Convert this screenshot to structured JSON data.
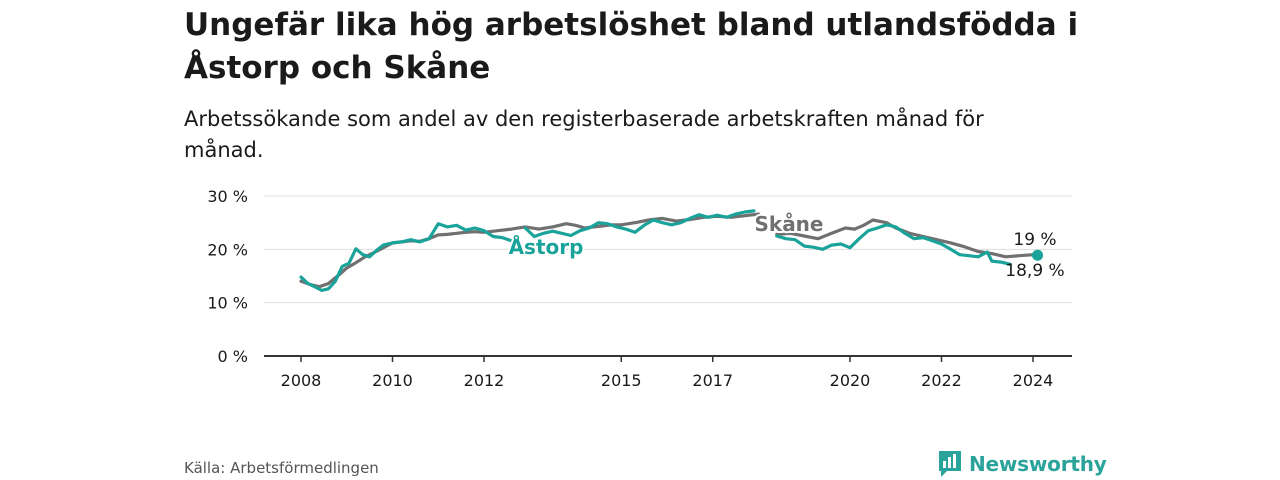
{
  "title": "Ungefär lika hög arbetslöshet bland utlandsfödda i Åstorp och Skåne",
  "subtitle": "Arbetssökande som andel av den registerbaserade arbetskraften månad för månad.",
  "source": "Källa: Arbetsförmedlingen",
  "brand": "Newsworthy",
  "colors": {
    "astorp": "#1aa39a",
    "skane": "#707070",
    "axis": "#333333",
    "grid": "#dddddd",
    "text": "#1a1a1a"
  },
  "chart_data": {
    "type": "line",
    "title": "Ungefär lika hög arbetslöshet bland utlandsfödda i Åstorp och Skåne",
    "xlabel": "",
    "ylabel": "",
    "xlim": [
      2007.7,
      2024.8
    ],
    "ylim": [
      0,
      30
    ],
    "y_ticks": [
      0,
      10,
      20,
      30
    ],
    "y_tick_labels": [
      "0 %",
      "10 %",
      "20 %",
      "30 %"
    ],
    "x_ticks": [
      2008,
      2010,
      2012,
      2015,
      2017,
      2020,
      2022,
      2024
    ],
    "x_tick_labels": [
      "2008",
      "2010",
      "2012",
      "2015",
      "2017",
      "2020",
      "2022",
      "2024"
    ],
    "grid": true,
    "series": [
      {
        "name": "Skåne",
        "label": "Skåne",
        "end_label": "19 %",
        "x": [
          2008.0,
          2008.2,
          2008.4,
          2008.6,
          2008.8,
          2009.0,
          2009.2,
          2009.4,
          2009.6,
          2009.8,
          2010.0,
          2010.2,
          2010.4,
          2010.6,
          2010.8,
          2011.0,
          2011.2,
          2011.4,
          2011.6,
          2011.8,
          2012.0,
          2012.3,
          2012.6,
          2012.9,
          2013.2,
          2013.5,
          2013.8,
          2014.0,
          2014.2,
          2014.4,
          2014.6,
          2014.8,
          2015.0,
          2015.3,
          2015.6,
          2015.9,
          2016.2,
          2016.5,
          2016.8,
          2017.1,
          2017.4,
          2017.7,
          2018.0,
          null,
          2018.4,
          2018.7,
          2019.0,
          2019.3,
          2019.6,
          2019.9,
          2020.1,
          2020.3,
          2020.5,
          2020.8,
          2021.0,
          2021.3,
          2021.6,
          2021.9,
          2022.2,
          2022.5,
          2022.8,
          2023.1,
          2023.4,
          2023.7,
          2024.0,
          2024.1
        ],
        "values": [
          14.0,
          13.4,
          13.0,
          13.6,
          15.0,
          16.5,
          17.5,
          18.6,
          19.4,
          20.3,
          21.2,
          21.4,
          21.6,
          21.5,
          22.0,
          22.7,
          22.8,
          23.0,
          23.2,
          23.3,
          23.2,
          23.5,
          23.8,
          24.2,
          23.8,
          24.2,
          24.8,
          24.5,
          24.0,
          24.2,
          24.4,
          24.6,
          24.6,
          25.0,
          25.5,
          25.8,
          25.3,
          25.6,
          26.0,
          26.2,
          26.0,
          26.3,
          26.6,
          null,
          22.8,
          23.0,
          22.5,
          22.0,
          23.0,
          24.0,
          23.8,
          24.5,
          25.5,
          25.0,
          24.0,
          23.0,
          22.4,
          21.8,
          21.2,
          20.5,
          19.6,
          19.2,
          18.6,
          18.8,
          19.0,
          19.0
        ]
      },
      {
        "name": "Åstorp",
        "label": "Åstorp",
        "end_label": "18,9 %",
        "x": [
          2008.0,
          2008.15,
          2008.3,
          2008.45,
          2008.6,
          2008.75,
          2008.9,
          2009.05,
          2009.2,
          2009.35,
          2009.5,
          2009.65,
          2009.8,
          2010.0,
          2010.2,
          2010.4,
          2010.6,
          2010.8,
          2011.0,
          2011.2,
          2011.4,
          2011.6,
          2011.8,
          2012.0,
          2012.2,
          2012.4,
          2012.6,
          null,
          2012.9,
          2013.1,
          2013.3,
          2013.5,
          2013.7,
          2013.9,
          2014.1,
          2014.3,
          2014.5,
          2014.7,
          2014.9,
          2015.1,
          2015.3,
          2015.5,
          2015.7,
          2015.9,
          2016.1,
          2016.3,
          2016.5,
          2016.7,
          2016.9,
          2017.1,
          2017.3,
          2017.5,
          2017.7,
          2017.9,
          null,
          2018.4,
          2018.6,
          2018.8,
          2019.0,
          2019.2,
          2019.4,
          2019.6,
          2019.8,
          2020.0,
          2020.2,
          2020.4,
          2020.6,
          2020.8,
          2021.0,
          2021.2,
          2021.4,
          2021.6,
          2021.8,
          2022.0,
          2022.2,
          2022.4,
          2022.6,
          2022.8,
          2023.0,
          2023.1,
          2023.3,
          2023.5,
          null,
          2024.0,
          2024.1
        ],
        "values": [
          14.8,
          13.6,
          13.0,
          12.3,
          12.6,
          14.0,
          16.8,
          17.4,
          20.1,
          19.0,
          18.6,
          19.8,
          20.8,
          21.2,
          21.4,
          21.8,
          21.4,
          22.0,
          24.8,
          24.2,
          24.5,
          23.6,
          24.0,
          23.5,
          22.4,
          22.2,
          21.6,
          null,
          24.0,
          22.4,
          23.0,
          23.4,
          23.0,
          22.6,
          23.5,
          24.0,
          25.0,
          24.8,
          24.2,
          23.8,
          23.2,
          24.5,
          25.5,
          25.0,
          24.6,
          25.0,
          25.8,
          26.5,
          26.0,
          26.4,
          26.0,
          26.6,
          27.0,
          27.2,
          null,
          22.5,
          22.0,
          21.8,
          20.6,
          20.4,
          20.0,
          20.8,
          21.0,
          20.3,
          22.0,
          23.5,
          24.0,
          24.6,
          24.2,
          23.0,
          22.0,
          22.2,
          21.6,
          21.0,
          20.0,
          19.0,
          18.8,
          18.6,
          19.5,
          17.8,
          17.6,
          17.2,
          null,
          18.9,
          18.9
        ]
      }
    ],
    "annotations": [
      {
        "text": "Skåne",
        "series": "Skåne"
      },
      {
        "text": "Åstorp",
        "series": "Åstorp"
      }
    ]
  }
}
